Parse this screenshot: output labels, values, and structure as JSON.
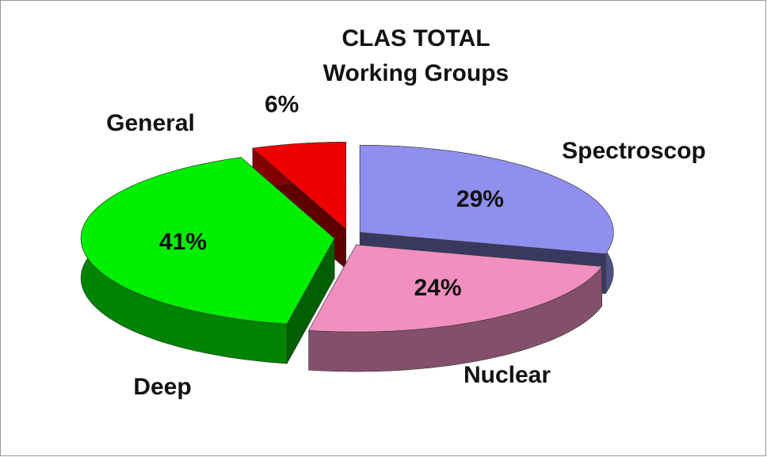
{
  "chart_data": {
    "type": "pie",
    "title": "CLAS TOTAL",
    "subtitle": "Working Groups",
    "categories": [
      "Spectroscop",
      "Nuclear",
      "Deep",
      "General"
    ],
    "values": [
      29,
      24,
      41,
      6
    ],
    "value_labels": [
      "29%",
      "24%",
      "41%",
      "6%"
    ],
    "colors": [
      "#8f8fef",
      "#f08fc0",
      "#00ee00",
      "#ee0000"
    ]
  }
}
